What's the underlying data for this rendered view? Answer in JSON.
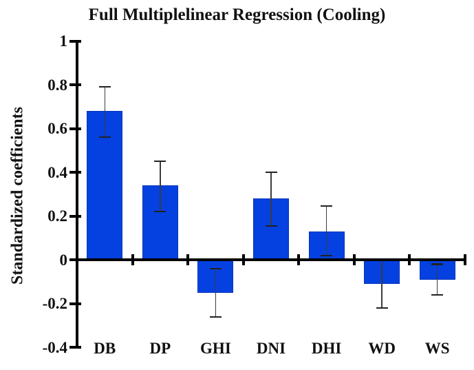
{
  "chart_data": {
    "type": "bar",
    "title": "Full Multiplelinear Regression (Cooling)",
    "xlabel": "",
    "ylabel": "Standardized coefficients",
    "categories": [
      "DB",
      "DP",
      "GHI",
      "DNI",
      "DHI",
      "WD",
      "WS"
    ],
    "values": [
      0.68,
      0.34,
      -0.15,
      0.28,
      0.13,
      -0.11,
      -0.09
    ],
    "error_high": [
      0.79,
      0.45,
      -0.04,
      0.4,
      0.245,
      0.0,
      -0.02
    ],
    "error_low": [
      0.56,
      0.22,
      -0.26,
      0.155,
      0.02,
      -0.22,
      -0.16
    ],
    "ylim": [
      -0.4,
      1.0
    ],
    "ytick_values": [
      1,
      0.8,
      0.6,
      0.4,
      0.2,
      0,
      -0.2,
      -0.4
    ],
    "ytick_labels": [
      "1",
      "0.8",
      "0.6",
      "0.4",
      "0.2",
      "0",
      "-0.2",
      "-0.4"
    ],
    "grid": false,
    "legend_position": "none",
    "colors": {
      "bar_fill": "#0441E0",
      "bar_edge": "#0232B8",
      "error_bar": "#3C3C3C",
      "error_cap": "#222222",
      "axis": "#000000",
      "background": "#FFFFFF",
      "text": "#111111"
    }
  }
}
